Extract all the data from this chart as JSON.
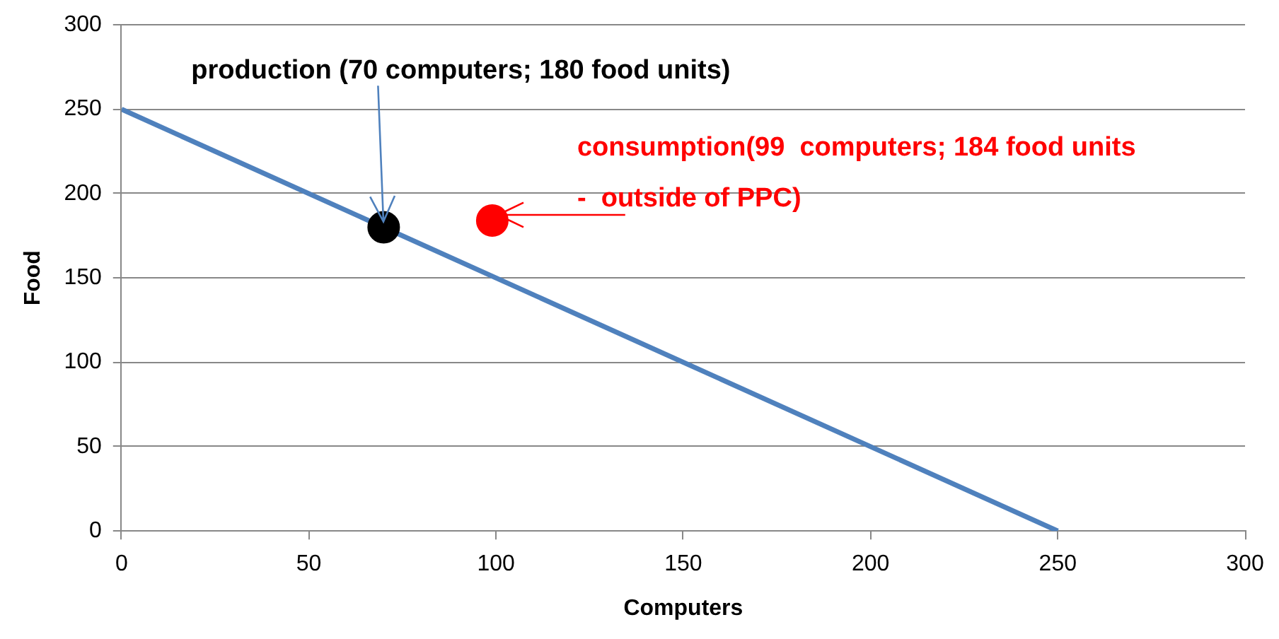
{
  "chart_data": {
    "type": "line",
    "xlabel": "Computers",
    "ylabel": "Food",
    "series": [
      {
        "type": "line",
        "color": "#4f81bd",
        "x": [
          0,
          250
        ],
        "values": [
          250,
          0
        ],
        "marker": "none"
      },
      {
        "type": "scatter",
        "color": "#000000",
        "x": [
          70
        ],
        "values": [
          180
        ],
        "marker": "circle"
      },
      {
        "type": "scatter",
        "color": "#ff0000",
        "x": [
          99
        ],
        "values": [
          184
        ],
        "marker": "circle"
      }
    ],
    "annotations": [
      {
        "text": "production (70 computers; 180 food units)",
        "x": 70,
        "y": 180
      },
      {
        "text": "consumption(99  computers; 184 food units -  outside of PPC)",
        "x": 99,
        "y": 184
      }
    ],
    "xlim": [
      0,
      300
    ],
    "xticks": [
      0,
      50,
      100,
      150,
      200,
      250,
      300
    ],
    "ylim": [
      0,
      300
    ],
    "yticks": [
      0,
      50,
      100,
      150,
      200,
      250,
      300
    ],
    "grid": "y",
    "legend": false
  }
}
